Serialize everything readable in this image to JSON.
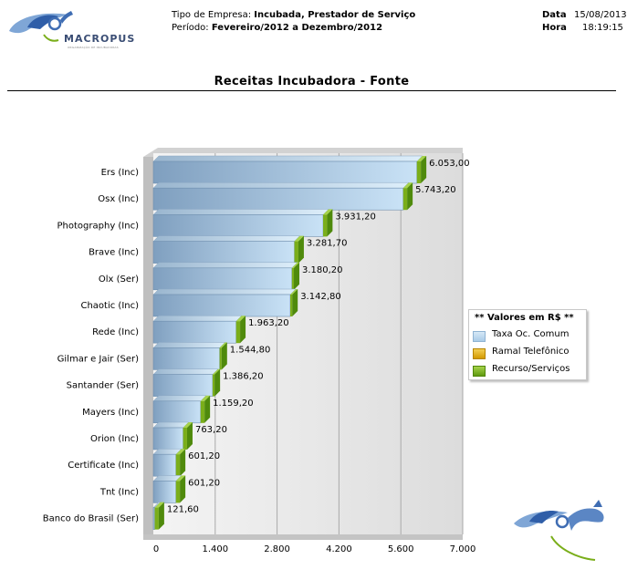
{
  "header": {
    "company_type_label": "Tipo de Empresa:",
    "company_type_value": "Incubada, Prestador de Serviço",
    "period_label": "Período:",
    "period_value": "Fevereiro/2012 a Dezembro/2012",
    "date_label": "Data",
    "date_value": "15/08/2013",
    "time_label": "Hora",
    "time_value": "18:19:15"
  },
  "logo": {
    "text": "MACROPUS",
    "subtext": "ORGANIZAÇÃO DE INCUBADORAS"
  },
  "page_title": "Receitas Incubadora - Fonte",
  "legend": {
    "title": "** Valores em R$ **",
    "items": [
      {
        "label": "Taxa Oc. Comum",
        "color": "#a9cbe8"
      },
      {
        "label": "Ramal Telefônico",
        "color": "#e0a800"
      },
      {
        "label": "Recurso/Serviços",
        "color": "#7aae1a"
      }
    ]
  },
  "chart_data": {
    "type": "bar",
    "orientation": "horizontal",
    "title": "Receitas Incubadora - Fonte",
    "categories": [
      "Ers (Inc)",
      "Osx (Inc)",
      "Photography (Inc)",
      "Brave (Inc)",
      "Olx (Ser)",
      "Chaotic (Inc)",
      "Rede (Inc)",
      "Gilmar e Jair (Ser)",
      "Santander (Ser)",
      "Mayers (Inc)",
      "Orion (Inc)",
      "Certificate (Inc)",
      "Tnt (Inc)",
      "Banco do Brasil (Ser)"
    ],
    "series": [
      {
        "name": "Taxa Oc. Comum",
        "values": [
          5963.0,
          5653.2,
          3841.2,
          3191.7,
          3135.2,
          3097.8,
          1873.2,
          1499.8,
          1341.2,
          1069.2,
          673.2,
          511.2,
          511.2,
          31.6
        ]
      },
      {
        "name": "Ramal Telefônico",
        "values": [
          0,
          0,
          0,
          0,
          0,
          0,
          0,
          0,
          0,
          0,
          0,
          0,
          0,
          0
        ]
      },
      {
        "name": "Recurso/Serviços",
        "values": [
          90.0,
          90.0,
          90.0,
          90.0,
          45.0,
          45.0,
          90.0,
          45.0,
          45.0,
          90.0,
          90.0,
          90.0,
          90.0,
          90.0
        ]
      }
    ],
    "totals": [
      6053.0,
      5743.2,
      3931.2,
      3281.7,
      3180.2,
      3142.8,
      1963.2,
      1544.8,
      1386.2,
      1159.2,
      763.2,
      601.2,
      601.2,
      121.6
    ],
    "total_labels": [
      "6.053,00",
      "5.743,20",
      "3.931,20",
      "3.281,70",
      "3.180,20",
      "3.142,80",
      "1.963,20",
      "1.544,80",
      "1.386,20",
      "1.159,20",
      "763,20",
      "601,20",
      "601,20",
      "121,60"
    ],
    "xticks": [
      0,
      1400,
      2800,
      4200,
      5600,
      7000
    ],
    "xtick_labels": [
      "0",
      "1.400",
      "2.800",
      "4.200",
      "5.600",
      "7.000"
    ],
    "xlim": [
      0,
      7000
    ],
    "grid": true,
    "legend_position": "right"
  }
}
